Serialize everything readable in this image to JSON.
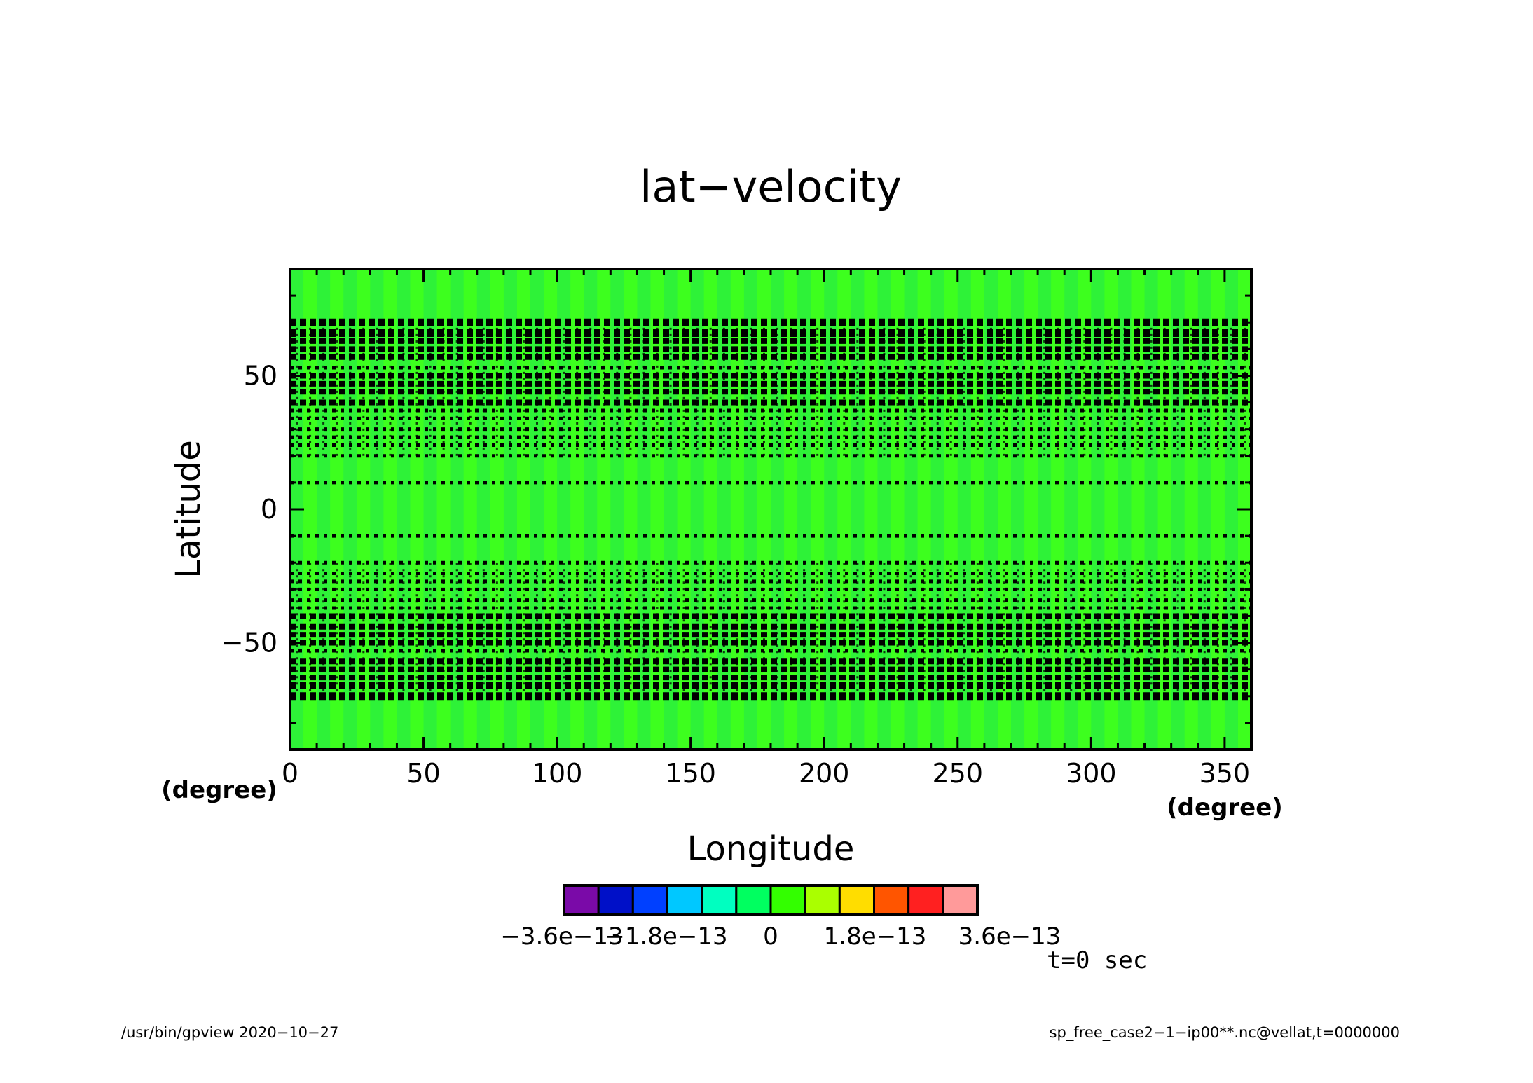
{
  "chart_data": {
    "type": "heatmap",
    "title": "lat−velocity",
    "xlabel": "Longitude",
    "ylabel": "Latitude",
    "x_unit": "(degree)",
    "y_unit": "(degree)",
    "xlim": [
      0,
      360
    ],
    "ylim": [
      -90,
      90
    ],
    "x_ticks": [
      "0",
      "50",
      "100",
      "150",
      "200",
      "250",
      "300",
      "350"
    ],
    "x_tick_values": [
      0,
      50,
      100,
      150,
      200,
      250,
      300,
      350
    ],
    "y_ticks": [
      "−50",
      "0",
      "50"
    ],
    "y_tick_values": [
      -50,
      0,
      50
    ],
    "field_value": 0,
    "contour_latitudes": [
      -70,
      -66,
      -63,
      -60,
      -57,
      -53,
      -50,
      -47,
      -44,
      -40,
      -37,
      -34,
      -30,
      -27,
      -24,
      -20,
      -10,
      10,
      20,
      24,
      27,
      30,
      34,
      37,
      40,
      44,
      47,
      50,
      53,
      57,
      60,
      63,
      66,
      70
    ],
    "contour_longitude_spacing": 5,
    "colorbar": {
      "colors": [
        "#7a0aa8",
        "#0010c8",
        "#0040ff",
        "#00c8ff",
        "#00ffc0",
        "#00ff60",
        "#33ff00",
        "#aaff00",
        "#ffdd00",
        "#ff5500",
        "#ff2020",
        "#ff9a9a"
      ],
      "tick_labels": [
        "−3.6e−13",
        "−1.8e−13",
        "0",
        "1.8e−13",
        "3.6e−13"
      ],
      "tick_values": [
        -3.6e-13,
        -1.8e-13,
        0,
        1.8e-13,
        3.6e-13
      ]
    },
    "annotation": "t=0 sec"
  },
  "footer": {
    "left": "/usr/bin/gpview   2020−10−27",
    "right": "sp_free_case2−1−ip00**.nc@vellat,t=0000000"
  },
  "colors": {
    "field_fill": "#3dff1e",
    "field_stripe": "#2ef238",
    "contour": "#000000"
  }
}
